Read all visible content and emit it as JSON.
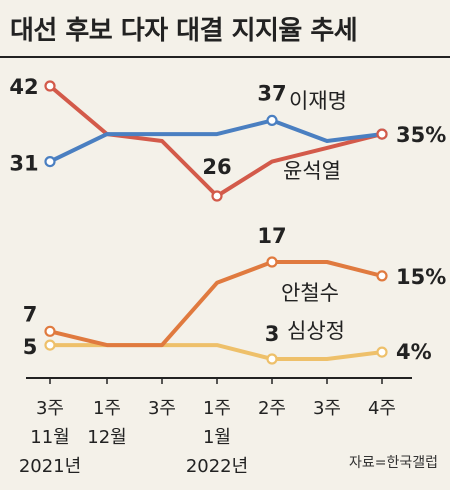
{
  "title": "대선 후보 다자 대결 지지율 추세",
  "source": "자료=한국갤럽",
  "chart_data": {
    "type": "line",
    "categories": [
      [
        "3주",
        "11월",
        "2021년"
      ],
      [
        "1주",
        "12월",
        ""
      ],
      [
        "3주",
        "",
        ""
      ],
      [
        "1주",
        "1월",
        "2022년"
      ],
      [
        "2주",
        "",
        ""
      ],
      [
        "3주",
        "",
        ""
      ],
      [
        "4주",
        "",
        ""
      ]
    ],
    "series": [
      {
        "name": "이재명",
        "color": "#4a7fc1",
        "values": [
          31,
          35,
          35,
          35,
          37,
          34,
          35
        ],
        "labels": [
          {
            "index": 0,
            "text": "31"
          },
          {
            "index": 4,
            "text": "37"
          },
          {
            "index": 6,
            "text": "35%"
          }
        ]
      },
      {
        "name": "윤석열",
        "color": "#d35a4a",
        "values": [
          42,
          35,
          34,
          26,
          31,
          33,
          35
        ],
        "labels": [
          {
            "index": 0,
            "text": "42"
          },
          {
            "index": 3,
            "text": "26"
          }
        ]
      },
      {
        "name": "안철수",
        "color": "#e07a3f",
        "values": [
          7,
          5,
          5,
          14,
          17,
          17,
          15
        ],
        "labels": [
          {
            "index": 0,
            "text": "7"
          },
          {
            "index": 4,
            "text": "17"
          },
          {
            "index": 6,
            "text": "15%"
          }
        ]
      },
      {
        "name": "심상정",
        "color": "#eec06a",
        "values": [
          5,
          5,
          5,
          5,
          3,
          3,
          4
        ],
        "labels": [
          {
            "index": 0,
            "text": "5"
          },
          {
            "index": 4,
            "text": "3"
          },
          {
            "index": 6,
            "text": "4%"
          }
        ]
      }
    ],
    "markers": [
      {
        "series": "이재명",
        "index": 0
      },
      {
        "series": "이재명",
        "index": 4
      },
      {
        "series": "이재명",
        "index": 6
      },
      {
        "series": "윤석열",
        "index": 0
      },
      {
        "series": "윤석열",
        "index": 3
      },
      {
        "series": "윤석열",
        "index": 6
      },
      {
        "series": "안철수",
        "index": 0
      },
      {
        "series": "안철수",
        "index": 4
      },
      {
        "series": "안철수",
        "index": 6
      },
      {
        "series": "심상정",
        "index": 0
      },
      {
        "series": "심상정",
        "index": 4
      },
      {
        "series": "심상정",
        "index": 6
      }
    ]
  }
}
